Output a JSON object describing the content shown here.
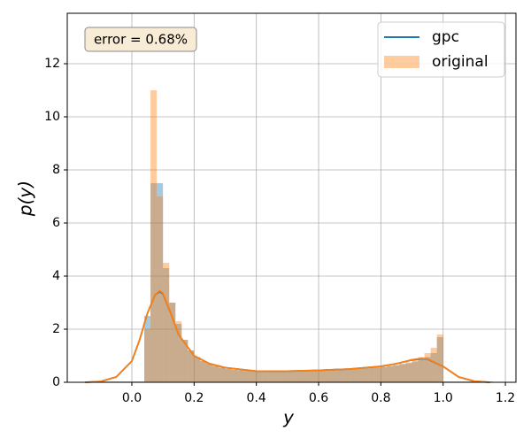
{
  "chart_data": {
    "type": "histogram",
    "xlabel": "y",
    "ylabel": "p(y)",
    "annotation": "error = 0.68%",
    "xlim": [
      -0.2075,
      1.234
    ],
    "ylim": [
      0,
      13.9
    ],
    "xticks": [
      {
        "value": 0,
        "label": "0.0"
      },
      0.2,
      0.4,
      0.6,
      0.8,
      {
        "value": 1,
        "label": "1.0"
      },
      1.2
    ],
    "yticks": [
      0,
      2,
      4,
      6,
      8,
      10,
      12
    ],
    "grid": true,
    "legend": "upper right",
    "series": [
      {
        "name": "gpc",
        "color": "#1f77b4",
        "bins": [
          -0.14,
          -0.12,
          -0.1,
          -0.08,
          -0.06,
          -0.04,
          -0.02,
          0,
          0.02,
          0.04,
          0.06,
          0.08,
          0.1,
          0.12,
          0.14,
          0.16,
          0.18,
          0.2,
          0.22,
          0.24,
          0.26,
          0.28,
          0.3,
          0.32,
          0.34,
          0.36,
          0.38,
          0.4,
          0.42,
          0.44,
          0.46,
          0.48,
          0.5,
          0.52,
          0.54,
          0.56,
          0.58,
          0.6,
          0.62,
          0.64,
          0.66,
          0.68,
          0.7,
          0.72,
          0.74,
          0.76,
          0.78,
          0.8,
          0.82,
          0.84,
          0.86,
          0.88,
          0.9,
          0.92,
          0.94,
          0.96,
          0.98,
          1,
          1.02,
          1.04,
          1.06,
          1.08,
          1.1,
          1.12,
          1.14,
          1.16
        ],
        "values": [
          0.03,
          0.03,
          0.03,
          0.03,
          0.03,
          0.03,
          0.03,
          0.03,
          0.03,
          2.5,
          7.5,
          7.5,
          4.3,
          3.0,
          2.2,
          1.6,
          1.2,
          0.95,
          0.8,
          0.7,
          0.6,
          0.55,
          0.5,
          0.47,
          0.45,
          0.43,
          0.42,
          0.41,
          0.41,
          0.4,
          0.41,
          0.42,
          0.42,
          0.43,
          0.44,
          0.45,
          0.45,
          0.47,
          0.48,
          0.5,
          0.49,
          0.5,
          0.51,
          0.52,
          0.53,
          0.55,
          0.56,
          0.58,
          0.6,
          0.64,
          0.68,
          0.72,
          0.78,
          0.86,
          0.95,
          1.1,
          1.7,
          0.03,
          0.03,
          0.03,
          0.03,
          0.03,
          0.03,
          0.03,
          0.03
        ]
      },
      {
        "name": "original",
        "color": "#ff7f0e",
        "bins": [
          0.04,
          0.06,
          0.08,
          0.1,
          0.12,
          0.14,
          0.16,
          0.18,
          0.2,
          0.22,
          0.24,
          0.26,
          0.28,
          0.3,
          0.32,
          0.34,
          0.36,
          0.38,
          0.4,
          0.42,
          0.44,
          0.46,
          0.48,
          0.5,
          0.52,
          0.54,
          0.56,
          0.58,
          0.6,
          0.62,
          0.64,
          0.66,
          0.68,
          0.7,
          0.72,
          0.74,
          0.76,
          0.78,
          0.8,
          0.82,
          0.84,
          0.86,
          0.88,
          0.9,
          0.92,
          0.94,
          0.96,
          0.98,
          1
        ],
        "values": [
          2.0,
          11.0,
          7.0,
          4.5,
          3.0,
          2.3,
          1.6,
          1.2,
          0.95,
          0.8,
          0.7,
          0.62,
          0.55,
          0.5,
          0.47,
          0.45,
          0.43,
          0.42,
          0.4,
          0.42,
          0.4,
          0.42,
          0.4,
          0.43,
          0.42,
          0.45,
          0.44,
          0.46,
          0.48,
          0.5,
          0.48,
          0.5,
          0.5,
          0.52,
          0.5,
          0.52,
          0.55,
          0.55,
          0.58,
          0.62,
          0.65,
          0.7,
          0.75,
          0.85,
          0.95,
          1.1,
          1.3,
          1.8
        ]
      }
    ],
    "lines": {
      "x": [
        -0.15,
        -0.1,
        -0.05,
        0,
        0.025,
        0.05,
        0.075,
        0.09,
        0.1,
        0.125,
        0.15,
        0.2,
        0.25,
        0.3,
        0.4,
        0.5,
        0.6,
        0.7,
        0.8,
        0.85,
        0.9,
        0.93,
        0.95,
        1,
        1.05,
        1.1,
        1.15
      ],
      "series": [
        {
          "color": "#1f77b4",
          "values": [
            0,
            0.03,
            0.2,
            0.8,
            1.6,
            2.6,
            3.3,
            3.42,
            3.33,
            2.6,
            1.8,
            1.0,
            0.7,
            0.55,
            0.42,
            0.42,
            0.45,
            0.5,
            0.6,
            0.7,
            0.84,
            0.89,
            0.87,
            0.6,
            0.2,
            0.04,
            0
          ]
        },
        {
          "color": "#ff7f0e",
          "values": [
            0,
            0.03,
            0.2,
            0.8,
            1.6,
            2.6,
            3.3,
            3.45,
            3.35,
            2.6,
            1.8,
            1.0,
            0.7,
            0.55,
            0.42,
            0.42,
            0.45,
            0.5,
            0.6,
            0.7,
            0.85,
            0.9,
            0.88,
            0.6,
            0.2,
            0.04,
            0
          ]
        }
      ]
    }
  }
}
